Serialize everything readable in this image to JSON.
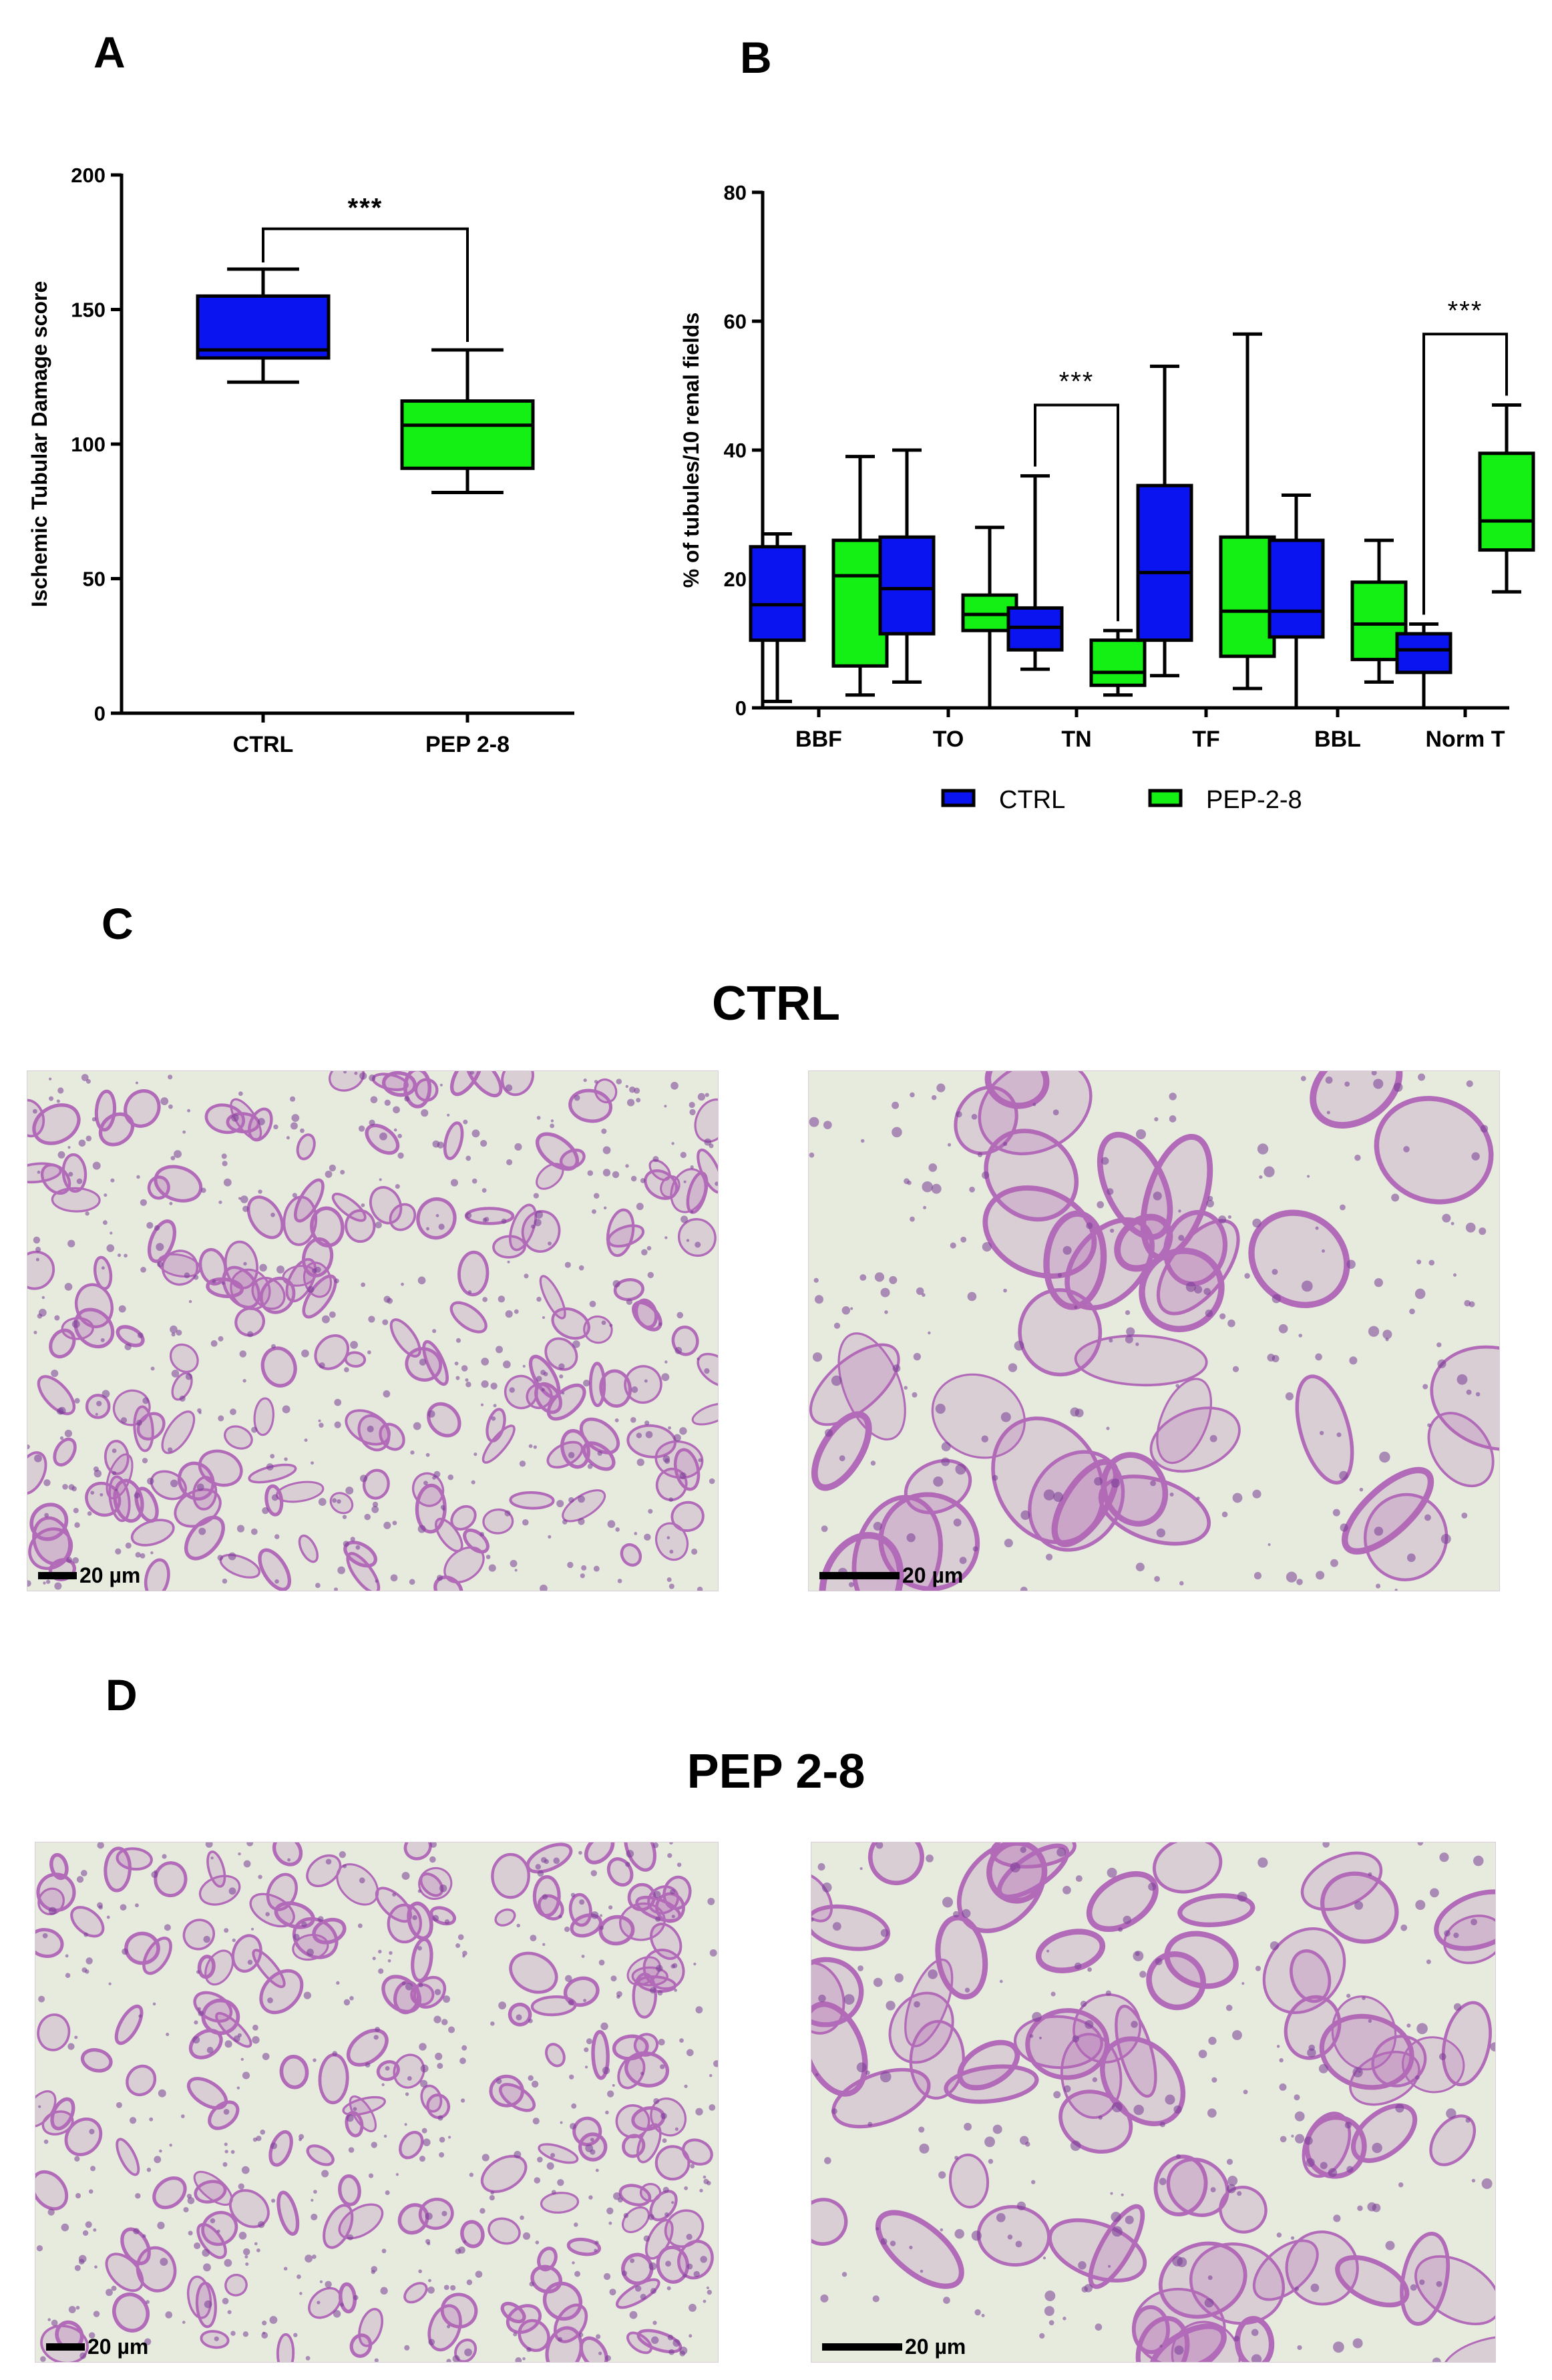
{
  "figure": {
    "panels": {
      "a": "A",
      "b": "B",
      "c": "C",
      "d": "D"
    },
    "section_titles": {
      "c": "CTRL",
      "d": "PEP 2-8"
    },
    "scale_bar_label": "20 µm",
    "colors": {
      "ctrl": "#0a14f0",
      "pep": "#14f014",
      "tissue_bg": "#e6ebde",
      "tissue_stain": "#b26bb8"
    }
  },
  "chart_data": [
    {
      "type": "box",
      "panel": "A",
      "ylabel": "Ischemic Tubular Damage score",
      "ylim": [
        0,
        200
      ],
      "yticks": [
        0,
        50,
        100,
        150,
        200
      ],
      "categories": [
        "CTRL",
        "PEP 2-8"
      ],
      "boxes": [
        {
          "category": "CTRL",
          "min": 123,
          "q1": 132,
          "median": 135,
          "q3": 155,
          "max": 165,
          "color": "#0a14f0"
        },
        {
          "category": "PEP 2-8",
          "min": 82,
          "q1": 91,
          "median": 107,
          "q3": 116,
          "max": 135,
          "color": "#14f014"
        }
      ],
      "significance": {
        "label": "***",
        "from": "CTRL",
        "to": "PEP 2-8"
      }
    },
    {
      "type": "box",
      "panel": "B",
      "ylabel": "% of tubules/10 renal fields",
      "ylim": [
        0,
        80
      ],
      "yticks": [
        0,
        20,
        40,
        60,
        80
      ],
      "categories": [
        "BBF",
        "TO",
        "TN",
        "TF",
        "BBL",
        "Norm T"
      ],
      "legend": {
        "position": "bottom",
        "entries": [
          "CTRL",
          "PEP-2-8"
        ]
      },
      "series": [
        {
          "name": "CTRL",
          "color": "#0a14f0",
          "boxes": [
            {
              "min": 1,
              "q1": 10.5,
              "median": 16,
              "q3": 25,
              "max": 27
            },
            {
              "min": 4,
              "q1": 11.5,
              "median": 18.5,
              "q3": 26.5,
              "max": 40
            },
            {
              "min": 6,
              "q1": 9,
              "median": 12.5,
              "q3": 15.5,
              "max": 36
            },
            {
              "min": 5,
              "q1": 10.5,
              "median": 21,
              "q3": 34.5,
              "max": 53
            },
            {
              "min": 0,
              "q1": 11,
              "median": 15,
              "q3": 26,
              "max": 33
            },
            {
              "min": 0,
              "q1": 5.5,
              "median": 9,
              "q3": 11.5,
              "max": 13
            }
          ]
        },
        {
          "name": "PEP-2-8",
          "color": "#14f014",
          "boxes": [
            {
              "min": 2,
              "q1": 6.5,
              "median": 20.5,
              "q3": 26,
              "max": 39
            },
            {
              "min": 0,
              "q1": 12,
              "median": 14.5,
              "q3": 17.5,
              "max": 28
            },
            {
              "min": 2,
              "q1": 3.5,
              "median": 5.5,
              "q3": 10.5,
              "max": 12
            },
            {
              "min": 3,
              "q1": 8,
              "median": 15,
              "q3": 26.5,
              "max": 58
            },
            {
              "min": 4,
              "q1": 7.5,
              "median": 13,
              "q3": 19.5,
              "max": 26
            },
            {
              "min": 18,
              "q1": 24.5,
              "median": 29,
              "q3": 39.5,
              "max": 47
            }
          ]
        }
      ],
      "significance": [
        {
          "category": "TN",
          "label": "***"
        },
        {
          "category": "Norm T",
          "label": "***"
        }
      ]
    }
  ]
}
